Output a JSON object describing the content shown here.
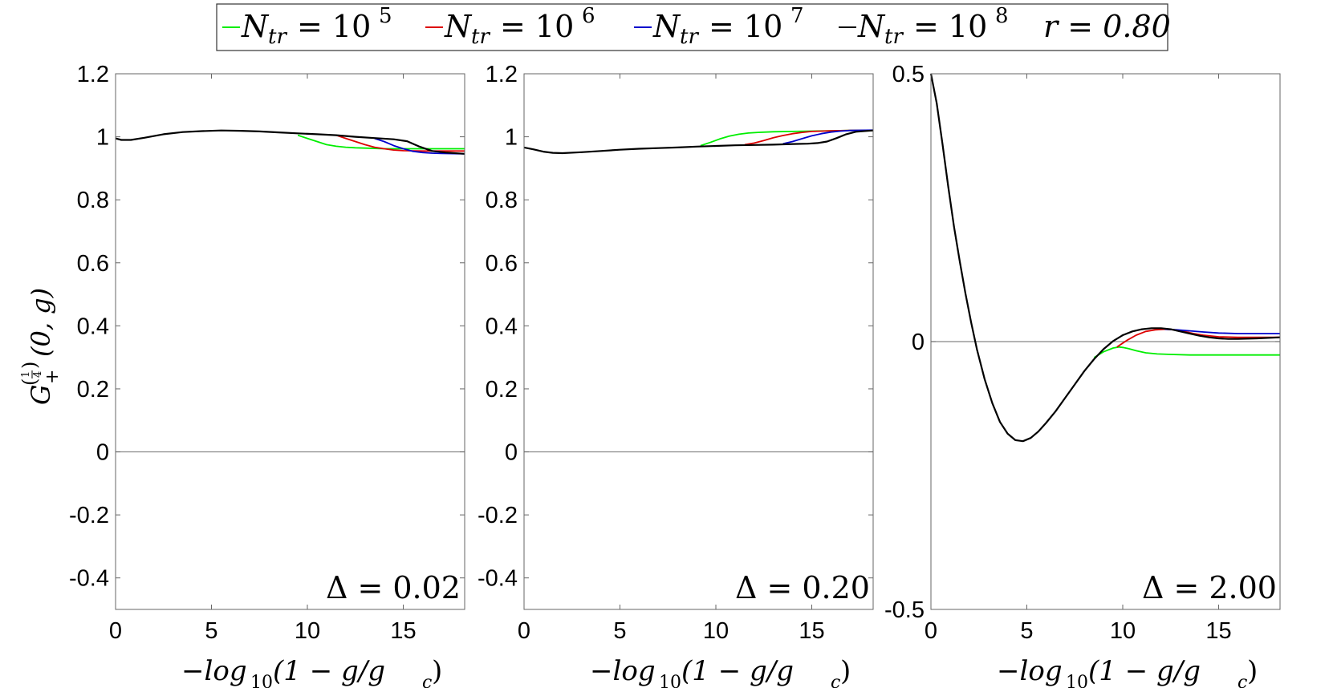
{
  "legend": {
    "entries": [
      {
        "label": "N",
        "sub": "tr",
        "eq": "= 10",
        "sup": "5",
        "color": "#00ee00"
      },
      {
        "label": "N",
        "sub": "tr",
        "eq": "= 10",
        "sup": "6",
        "color": "#dd0000"
      },
      {
        "label": "N",
        "sub": "tr",
        "eq": "= 10",
        "sup": "7",
        "color": "#0000cc"
      },
      {
        "label": "N",
        "sub": "tr",
        "eq": "= 10",
        "sup": "8",
        "color": "#000000"
      }
    ],
    "r_label": "r = 0.80"
  },
  "ylabel": {
    "base": "G",
    "sub": "+",
    "frac_num": "1",
    "frac_den": "4",
    "args": "(0, g)"
  },
  "xlabel": {
    "prefix": "−log",
    "sub": "10",
    "args": "(1 − g/g",
    "sub2": "c",
    "close": ")"
  },
  "chart_data": [
    {
      "type": "line",
      "annotation": "Δ = 0.02",
      "xlim": [
        0,
        18.2
      ],
      "ylim": [
        -0.5,
        1.2
      ],
      "xticks": [
        "0",
        "5",
        "10",
        "15"
      ],
      "yticks": [
        "-0.4",
        "-0.2",
        "0",
        "0.2",
        "0.4",
        "0.6",
        "0.8",
        "1",
        "1.2"
      ],
      "zero_line": true,
      "series": [
        {
          "color": "#00ee00",
          "x": [
            9.5,
            10,
            10.5,
            11,
            11.5,
            12,
            12.5,
            13,
            14,
            15,
            16,
            17,
            18.2
          ],
          "y": [
            1.005,
            0.995,
            0.985,
            0.975,
            0.97,
            0.967,
            0.965,
            0.964,
            0.962,
            0.962,
            0.962,
            0.962,
            0.962
          ]
        },
        {
          "color": "#dd0000",
          "x": [
            11.5,
            12,
            12.5,
            13,
            13.5,
            14,
            14.5,
            15,
            16,
            17,
            18.2
          ],
          "y": [
            1.005,
            0.995,
            0.985,
            0.975,
            0.967,
            0.962,
            0.958,
            0.956,
            0.955,
            0.955,
            0.955
          ]
        },
        {
          "color": "#0000cc",
          "x": [
            13.5,
            14,
            14.5,
            15,
            15.5,
            16,
            16.5,
            17,
            18.2
          ],
          "y": [
            0.995,
            0.985,
            0.972,
            0.962,
            0.954,
            0.95,
            0.948,
            0.947,
            0.946
          ]
        },
        {
          "color": "#000000",
          "x": [
            0,
            0.3,
            0.8,
            1.5,
            2.5,
            3.5,
            4.5,
            5.5,
            6.5,
            7.5,
            8.5,
            9.5,
            10.5,
            11.5,
            12.5,
            13.5,
            14.5,
            15.2,
            15.8,
            16.5,
            17.2,
            18.2
          ],
          "y": [
            0.995,
            0.99,
            0.99,
            0.997,
            1.008,
            1.015,
            1.018,
            1.02,
            1.019,
            1.017,
            1.014,
            1.011,
            1.008,
            1.005,
            1.0,
            0.996,
            0.992,
            0.986,
            0.97,
            0.955,
            0.95,
            0.946
          ]
        }
      ]
    },
    {
      "type": "line",
      "annotation": "Δ = 0.20",
      "xlim": [
        0,
        18.2
      ],
      "ylim": [
        -0.5,
        1.2
      ],
      "xticks": [
        "0",
        "5",
        "10",
        "15"
      ],
      "yticks": [
        "-0.4",
        "-0.2",
        "0",
        "0.2",
        "0.4",
        "0.6",
        "0.8",
        "1",
        "1.2"
      ],
      "zero_line": true,
      "series": [
        {
          "color": "#00ee00",
          "x": [
            9.2,
            9.7,
            10.2,
            10.7,
            11.2,
            11.7,
            12.2,
            13,
            14,
            15,
            16,
            17,
            18.2
          ],
          "y": [
            0.972,
            0.982,
            0.993,
            1.002,
            1.008,
            1.012,
            1.014,
            1.016,
            1.017,
            1.018,
            1.019,
            1.02,
            1.02
          ]
        },
        {
          "color": "#dd0000",
          "x": [
            11.5,
            12,
            12.5,
            13,
            13.5,
            14,
            14.5,
            15,
            16,
            17,
            18.2
          ],
          "y": [
            0.975,
            0.98,
            0.988,
            0.997,
            1.004,
            1.01,
            1.014,
            1.017,
            1.019,
            1.02,
            1.02
          ]
        },
        {
          "color": "#0000cc",
          "x": [
            13.5,
            14,
            14.5,
            15,
            15.5,
            16,
            16.5,
            17,
            18.2
          ],
          "y": [
            0.978,
            0.985,
            0.994,
            1.003,
            1.01,
            1.015,
            1.018,
            1.02,
            1.021
          ]
        },
        {
          "color": "#000000",
          "x": [
            0,
            0.5,
            1,
            1.5,
            2,
            3,
            4,
            5,
            6,
            7,
            8,
            9,
            10,
            11,
            12,
            13,
            14,
            14.8,
            15.3,
            15.8,
            16.3,
            16.8,
            17.3,
            18.2
          ],
          "y": [
            0.966,
            0.96,
            0.953,
            0.949,
            0.948,
            0.951,
            0.955,
            0.959,
            0.962,
            0.964,
            0.966,
            0.969,
            0.971,
            0.973,
            0.974,
            0.975,
            0.977,
            0.978,
            0.98,
            0.985,
            0.996,
            1.008,
            1.016,
            1.02
          ]
        }
      ]
    },
    {
      "type": "line",
      "annotation": "Δ = 2.00",
      "xlim": [
        0,
        18.2
      ],
      "ylim": [
        -0.5,
        0.5
      ],
      "xticks": [
        "0",
        "5",
        "10",
        "15"
      ],
      "yticks": [
        "-0.5",
        "0",
        "0.5"
      ],
      "zero_line": true,
      "series": [
        {
          "color": "#00ee00",
          "x": [
            8.5,
            9,
            9.5,
            9.8,
            10,
            10.3,
            10.7,
            11.2,
            11.8,
            12.5,
            13.5,
            15,
            16.5,
            18.2
          ],
          "y": [
            -0.03,
            -0.019,
            -0.012,
            -0.01,
            -0.011,
            -0.013,
            -0.017,
            -0.021,
            -0.023,
            -0.024,
            -0.025,
            -0.025,
            -0.025,
            -0.025
          ]
        },
        {
          "color": "#dd0000",
          "x": [
            9.7,
            10.2,
            10.7,
            11.2,
            11.7,
            12.2,
            12.7,
            13.2,
            13.7,
            14.2,
            15,
            16,
            17,
            18.2
          ],
          "y": [
            -0.01,
            0.002,
            0.012,
            0.019,
            0.022,
            0.023,
            0.022,
            0.019,
            0.015,
            0.012,
            0.009,
            0.008,
            0.008,
            0.008
          ]
        },
        {
          "color": "#0000cc",
          "x": [
            12.2,
            12.8,
            13.5,
            14.2,
            15,
            16,
            17,
            18.2
          ],
          "y": [
            0.023,
            0.022,
            0.02,
            0.018,
            0.016,
            0.015,
            0.015,
            0.015
          ]
        },
        {
          "color": "#000000",
          "x": [
            0,
            0.3,
            0.6,
            0.9,
            1.2,
            1.5,
            1.8,
            2.1,
            2.4,
            2.8,
            3.2,
            3.6,
            4,
            4.4,
            4.8,
            5.2,
            5.6,
            6,
            6.5,
            7,
            7.5,
            8,
            8.5,
            9,
            9.5,
            10,
            10.5,
            11,
            11.5,
            12,
            12.5,
            13,
            13.5,
            14,
            14.5,
            15,
            15.5,
            16,
            17,
            18.2
          ],
          "y": [
            0.5,
            0.445,
            0.37,
            0.29,
            0.215,
            0.15,
            0.09,
            0.035,
            -0.015,
            -0.07,
            -0.115,
            -0.15,
            -0.172,
            -0.184,
            -0.186,
            -0.18,
            -0.168,
            -0.152,
            -0.13,
            -0.105,
            -0.08,
            -0.055,
            -0.033,
            -0.014,
            0.001,
            0.012,
            0.019,
            0.023,
            0.025,
            0.025,
            0.023,
            0.019,
            0.015,
            0.011,
            0.008,
            0.006,
            0.005,
            0.005,
            0.006,
            0.008
          ]
        }
      ]
    }
  ]
}
